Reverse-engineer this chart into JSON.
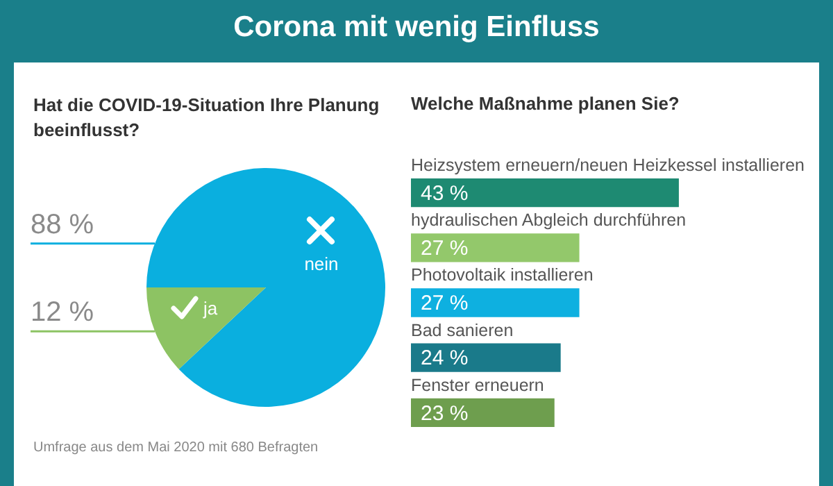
{
  "chart_data": [
    {
      "type": "pie",
      "title": "Corona mit wenig Einfluss",
      "subtitle": "Hat die COVID-19-Situation Ihre Planung beeinflusst?",
      "categories": [
        "nein",
        "ja"
      ],
      "values": [
        88,
        12
      ],
      "colors": [
        "#0aafdf",
        "#8dc363"
      ],
      "value_labels": [
        "88 %",
        "12 %"
      ],
      "annotations": [
        "Umfrage aus dem Mai 2020 mit 680 Befragten"
      ],
      "legend": false
    },
    {
      "type": "bar",
      "orientation": "horizontal",
      "title": "Welche Maßnahme planen Sie?",
      "categories": [
        "Heizsystem erneuern/neuen Heizkessel installieren",
        "hydraulischen Abgleich durchführen",
        "Photovoltaik installieren",
        "Bad sanieren",
        "Fenster erneuern"
      ],
      "values": [
        43,
        27,
        27,
        24,
        23
      ],
      "colors": [
        "#1e8a72",
        "#93c86b",
        "#0eb0e0",
        "#1a7a8a",
        "#6e9e4e"
      ],
      "value_labels": [
        "43 %",
        "27 %",
        "27 %",
        "24 %",
        "23 %"
      ],
      "legend": false
    }
  ]
}
